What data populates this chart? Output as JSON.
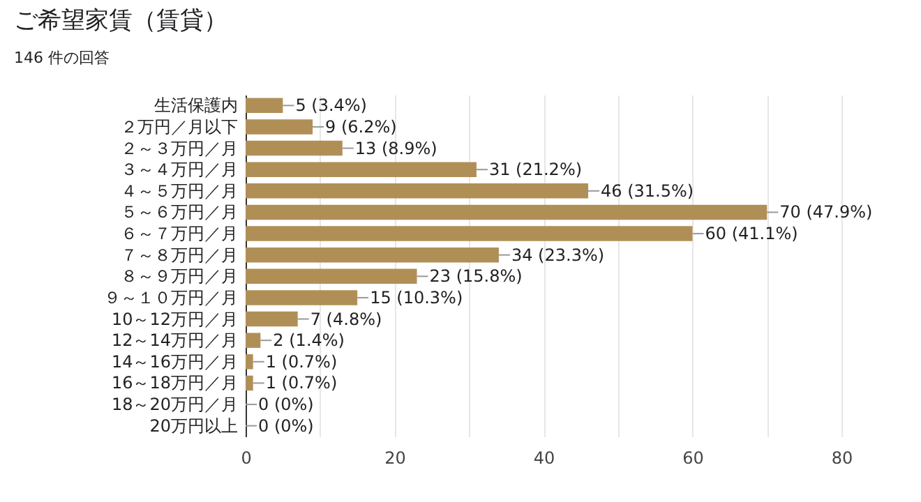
{
  "chart_data": {
    "type": "bar",
    "orientation": "horizontal",
    "title": "ご希望家賃（賃貸）",
    "subtitle": "146 件の回答",
    "categories": [
      "生活保護内",
      "２万円／月以下",
      "２～３万円／月",
      "３～４万円／月",
      "４～５万円／月",
      "５～６万円／月",
      "６～７万円／月",
      "７～８万円／月",
      "８～９万円／月",
      "９～１０万円／月",
      "10～12万円／月",
      "12～14万円／月",
      "14～16万円／月",
      "16～18万円／月",
      "18～20万円／月",
      "20万円以上"
    ],
    "values": [
      5,
      9,
      13,
      31,
      46,
      70,
      60,
      34,
      23,
      15,
      7,
      2,
      1,
      1,
      0,
      0
    ],
    "value_labels": [
      "5 (3.4%)",
      "9 (6.2%)",
      "13 (8.9%)",
      "31 (21.2%)",
      "46 (31.5%)",
      "70 (47.9%)",
      "60 (41.1%)",
      "34 (23.3%)",
      "23 (15.8%)",
      "15 (10.3%)",
      "7 (4.8%)",
      "2 (1.4%)",
      "1 (0.7%)",
      "1 (0.7%)",
      "0 (0%)",
      "0 (0%)"
    ],
    "color": "#b08f57",
    "xlim": [
      0,
      80
    ],
    "xticks": [
      0,
      {
        "value": 10,
        "label": null
      },
      20,
      {
        "value": 30,
        "label": null
      },
      40,
      {
        "value": 50,
        "label": null
      },
      60,
      {
        "value": 70,
        "label": null
      },
      80
    ],
    "grid": "x"
  }
}
